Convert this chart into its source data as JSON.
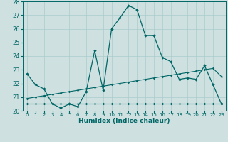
{
  "xlabel": "Humidex (Indice chaleur)",
  "x_values": [
    0,
    1,
    2,
    3,
    4,
    5,
    6,
    7,
    8,
    9,
    10,
    11,
    12,
    13,
    14,
    15,
    16,
    17,
    18,
    19,
    20,
    21,
    22,
    23
  ],
  "line1": [
    22.7,
    21.9,
    21.6,
    20.5,
    20.2,
    20.5,
    20.3,
    21.4,
    24.4,
    21.5,
    26.0,
    26.8,
    27.7,
    27.4,
    25.5,
    25.5,
    23.9,
    23.6,
    22.3,
    22.4,
    22.3,
    23.3,
    21.9,
    20.5
  ],
  "line2": [
    20.5,
    20.5,
    20.5,
    20.5,
    20.5,
    20.5,
    20.5,
    20.5,
    20.5,
    20.5,
    20.5,
    20.5,
    20.5,
    20.5,
    20.5,
    20.5,
    20.5,
    20.5,
    20.5,
    20.5,
    20.5,
    20.5,
    20.5,
    20.5
  ],
  "line3": [
    20.9,
    21.0,
    21.1,
    21.2,
    21.3,
    21.4,
    21.5,
    21.6,
    21.7,
    21.8,
    21.9,
    22.0,
    22.1,
    22.2,
    22.3,
    22.4,
    22.5,
    22.6,
    22.7,
    22.8,
    22.9,
    23.0,
    23.1,
    22.5
  ],
  "ylim": [
    20,
    28
  ],
  "yticks": [
    20,
    21,
    22,
    23,
    24,
    25,
    26,
    27,
    28
  ],
  "bg_color": "#cee0e0",
  "line_color": "#006666",
  "grid_color": "#aacccc"
}
